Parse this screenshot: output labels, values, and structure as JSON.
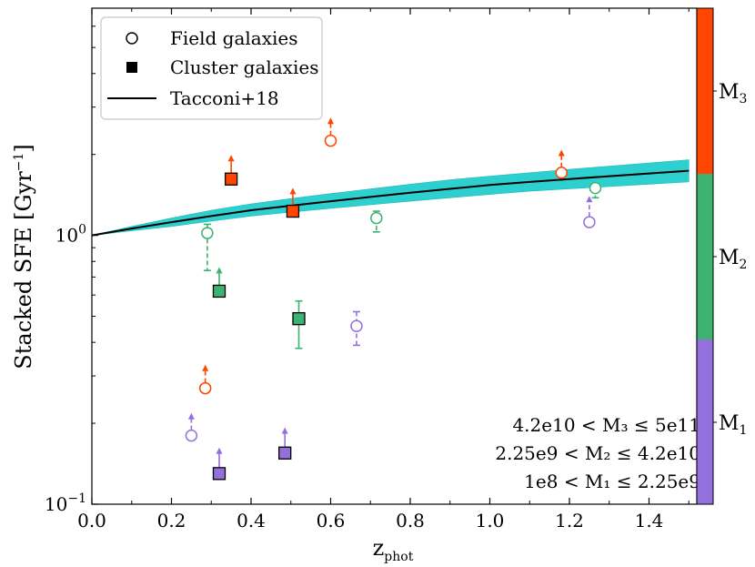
{
  "chart_data": {
    "type": "scatter",
    "title": "",
    "xlabel": "z",
    "xlabel_sub": "phot",
    "ylabel": "Stacked SFE [Gyr",
    "ylabel_sup": "−1",
    "ylabel_close": "]",
    "xlim": [
      0.0,
      1.52
    ],
    "ylim": [
      0.1,
      7.0
    ],
    "yscale": "log",
    "x_ticks": [
      {
        "value": 0.0,
        "label": "0.0"
      },
      {
        "value": 0.2,
        "label": "0.2"
      },
      {
        "value": 0.4,
        "label": "0.4"
      },
      {
        "value": 0.6,
        "label": "0.6"
      },
      {
        "value": 0.8,
        "label": "0.8"
      },
      {
        "value": 1.0,
        "label": "1.0"
      },
      {
        "value": 1.2,
        "label": "1.2"
      },
      {
        "value": 1.4,
        "label": "1.4"
      }
    ],
    "y_ticks": [
      {
        "value": 1.0,
        "base": "10",
        "exp": "0"
      },
      {
        "value": 0.1,
        "base": "10",
        "exp": "−1"
      }
    ],
    "legend": {
      "position": "top-left",
      "entries": [
        {
          "label": "Field galaxies",
          "marker": "open-circle"
        },
        {
          "label": "Cluster galaxies",
          "marker": "filled-square"
        },
        {
          "label": "Tacconi+18",
          "marker": "line"
        }
      ]
    },
    "colors": {
      "M1": "#9370DB",
      "M2": "#3CB371",
      "M3": "#FF4500",
      "band": "#2ECFCF",
      "line": "#000000"
    },
    "model_line": {
      "name": "Tacconi+18",
      "x": [
        0.0,
        0.1,
        0.2,
        0.3,
        0.4,
        0.5,
        0.6,
        0.7,
        0.8,
        0.9,
        1.0,
        1.1,
        1.2,
        1.3,
        1.4,
        1.5
      ],
      "y": [
        1.0,
        1.06,
        1.12,
        1.18,
        1.24,
        1.29,
        1.34,
        1.39,
        1.44,
        1.49,
        1.54,
        1.58,
        1.62,
        1.66,
        1.7,
        1.74
      ],
      "y_low": [
        1.0,
        1.04,
        1.08,
        1.13,
        1.18,
        1.22,
        1.26,
        1.3,
        1.34,
        1.38,
        1.42,
        1.46,
        1.49,
        1.52,
        1.55,
        1.58
      ],
      "y_high": [
        1.0,
        1.08,
        1.16,
        1.24,
        1.31,
        1.37,
        1.43,
        1.49,
        1.55,
        1.61,
        1.66,
        1.71,
        1.76,
        1.81,
        1.86,
        1.91
      ]
    },
    "series": [
      {
        "name": "Field galaxies",
        "marker": "circle",
        "points": [
          {
            "x": 0.25,
            "y": 0.18,
            "bin": "M1",
            "limit": "lower",
            "arrow_to": 0.215
          },
          {
            "x": 0.665,
            "y": 0.46,
            "bin": "M1",
            "err_low": 0.39,
            "err_high": 0.52
          },
          {
            "x": 1.25,
            "y": 1.12,
            "bin": "M1",
            "limit": "lower",
            "arrow_to": 1.38
          },
          {
            "x": 0.285,
            "y": 0.27,
            "bin": "M3",
            "limit": "lower",
            "arrow_to": 0.325
          },
          {
            "x": 0.6,
            "y": 2.25,
            "bin": "M3",
            "limit": "lower",
            "arrow_to": 2.7
          },
          {
            "x": 1.18,
            "y": 1.71,
            "bin": "M3",
            "limit": "lower",
            "arrow_to": 2.05
          },
          {
            "x": 0.29,
            "y": 1.02,
            "bin": "M2",
            "err_low": 0.74,
            "err_high": 1.1
          },
          {
            "x": 0.715,
            "y": 1.16,
            "bin": "M2",
            "err_low": 1.03,
            "err_high": 1.23
          },
          {
            "x": 1.265,
            "y": 1.5,
            "bin": "M2",
            "err_low": 1.38,
            "err_high": 1.5
          }
        ]
      },
      {
        "name": "Cluster galaxies",
        "marker": "square",
        "points": [
          {
            "x": 0.32,
            "y": 0.13,
            "bin": "M1",
            "limit": "lower",
            "arrow_to": 0.16
          },
          {
            "x": 0.485,
            "y": 0.155,
            "bin": "M1",
            "limit": "lower",
            "arrow_to": 0.19
          },
          {
            "x": 0.35,
            "y": 1.62,
            "bin": "M3",
            "limit": "lower",
            "arrow_to": 1.96
          },
          {
            "x": 0.505,
            "y": 1.23,
            "bin": "M3",
            "limit": "lower",
            "arrow_to": 1.48
          },
          {
            "x": 0.32,
            "y": 0.62,
            "bin": "M2",
            "limit": "lower",
            "arrow_to": 0.75
          },
          {
            "x": 0.52,
            "y": 0.49,
            "bin": "M2",
            "err_low": 0.38,
            "err_high": 0.57
          }
        ]
      }
    ],
    "annotations": [
      {
        "text": "4.2e10 < M₃ ≤ 5e11"
      },
      {
        "text": "2.25e9 < M₂ ≤ 4.2e10"
      },
      {
        "text": "1e8 < M₁ ≤ 2.25e9"
      }
    ],
    "colorbar": {
      "position": "right",
      "segments": [
        {
          "label": "M",
          "sub": "3",
          "color": "#FF4500"
        },
        {
          "label": "M",
          "sub": "2",
          "color": "#3CB371"
        },
        {
          "label": "M",
          "sub": "1",
          "color": "#9370DB"
        }
      ]
    }
  }
}
